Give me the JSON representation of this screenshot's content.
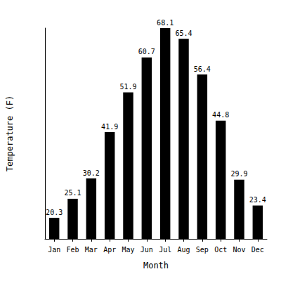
{
  "chart_data": {
    "type": "bar",
    "x_label": "Month",
    "y_label": "Temperature (F)",
    "categories": [
      "Jan",
      "Feb",
      "Mar",
      "Apr",
      "May",
      "Jun",
      "Jul",
      "Aug",
      "Sep",
      "Oct",
      "Nov",
      "Dec"
    ],
    "values": [
      20.3,
      25.1,
      30.2,
      41.9,
      51.9,
      60.7,
      68.1,
      65.4,
      56.4,
      44.8,
      29.9,
      23.4
    ],
    "color": "#000000",
    "ylim": [
      15,
      68.1
    ],
    "grid": false,
    "data_labels": true,
    "tick_labels": "x"
  }
}
